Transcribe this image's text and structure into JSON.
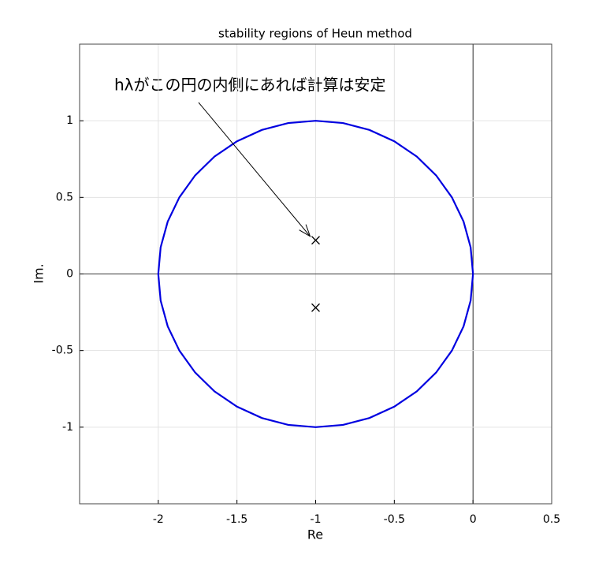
{
  "chart_data": {
    "type": "line",
    "title": "stability regions of Heun method",
    "xlabel": "Re",
    "ylabel": "Im.",
    "xlim": [
      -2.5,
      0.5
    ],
    "ylim": [
      -1.5,
      1.5
    ],
    "xticks": [
      -2,
      -1.5,
      -1,
      -0.5,
      0,
      0.5
    ],
    "yticks": [
      -1,
      -0.5,
      0,
      0.5,
      1
    ],
    "grid": true,
    "series": [
      {
        "color": "#0000e0",
        "x": [
          0,
          -0.015,
          -0.06,
          -0.134,
          -0.234,
          -0.357,
          -0.5,
          -0.658,
          -0.826,
          -1,
          -1.174,
          -1.342,
          -1.5,
          -1.643,
          -1.766,
          -1.866,
          -1.94,
          -1.985,
          -2,
          -1.985,
          -1.94,
          -1.866,
          -1.766,
          -1.643,
          -1.5,
          -1.342,
          -1.174,
          -1,
          -0.826,
          -0.658,
          -0.5,
          -0.357,
          -0.234,
          -0.134,
          -0.06,
          -0.015,
          0
        ],
        "y": [
          0,
          0.174,
          0.342,
          0.5,
          0.643,
          0.766,
          0.866,
          0.94,
          0.985,
          1,
          0.985,
          0.94,
          0.866,
          0.766,
          0.643,
          0.5,
          0.342,
          0.174,
          0,
          -0.174,
          -0.342,
          -0.5,
          -0.643,
          -0.766,
          -0.866,
          -0.94,
          -0.985,
          -1,
          -0.985,
          -0.94,
          -0.866,
          -0.766,
          -0.643,
          -0.5,
          -0.342,
          -0.174,
          0
        ]
      }
    ],
    "markers": {
      "color": "#000000",
      "x": [
        -1,
        -1
      ],
      "y": [
        0.22,
        -0.22
      ]
    },
    "annotation": "hλがこの円の内側にあれば計算は安定"
  }
}
